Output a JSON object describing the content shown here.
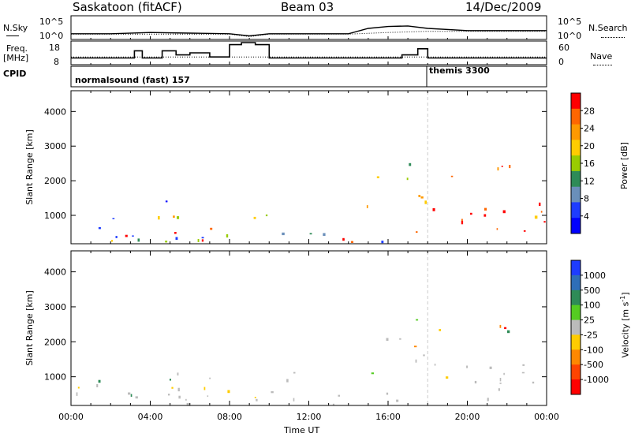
{
  "header": {
    "station": "Saskatoon (fitACF)",
    "beam": "Beam 03",
    "date": "14/Dec/2009"
  },
  "status_panel": {
    "nsky_label": "N.Sky",
    "nsky_ticks": [
      "10^5",
      "10^0"
    ],
    "nsearch_label": "N.Search",
    "nsearch_ticks": [
      "10^5",
      "10^0"
    ],
    "freq_label": "Freq.",
    "freq_unit": "[MHz]",
    "freq_ticks": [
      "18",
      "8"
    ],
    "nave_label": "Nave",
    "nave_ticks": [
      "60",
      "0"
    ],
    "cpid_label": "CPID",
    "cpid_modes": [
      {
        "name": "normalsound (fast) 157",
        "start_hour": 0,
        "end_hour": 18
      },
      {
        "name": "themis 3300",
        "start_hour": 18,
        "end_hour": 24
      }
    ]
  },
  "chart_data": [
    {
      "type": "line",
      "title": "",
      "series": [
        {
          "name": "N.Sky",
          "x": [
            0,
            2,
            4,
            6,
            8,
            9,
            10,
            12,
            14,
            15,
            16,
            17,
            18,
            20,
            22,
            24
          ],
          "values": [
            10,
            10,
            20,
            14,
            10,
            3,
            10,
            10,
            10,
            200,
            600,
            800,
            200,
            60,
            60,
            60
          ]
        },
        {
          "name": "N.Search",
          "x": [
            0,
            2,
            4,
            6,
            8,
            9,
            10,
            12,
            14,
            16,
            18,
            20,
            22,
            24
          ],
          "values": [
            8,
            8,
            8,
            8,
            8,
            2,
            8,
            8,
            8,
            20,
            40,
            40,
            40,
            40
          ]
        }
      ],
      "ylim": [
        1,
        100000
      ],
      "yscale": "log"
    },
    {
      "type": "line",
      "series": [
        {
          "name": "Freq.",
          "x": [
            0,
            3.2,
            3.6,
            4.6,
            5.3,
            6.0,
            7.0,
            8.0,
            8.6,
            9.3,
            10.0,
            16.7,
            17.5,
            18.0,
            24
          ],
          "values": [
            10.5,
            14,
            10.5,
            14,
            12,
            13,
            11,
            17,
            18,
            17,
            10.5,
            12,
            15,
            10.5,
            10.5
          ]
        },
        {
          "name": "Nave",
          "x": [
            0,
            24
          ],
          "values": [
            18,
            18
          ]
        }
      ],
      "freq_ylim": [
        8,
        18
      ],
      "nave_ylim": [
        0,
        60
      ]
    },
    {
      "type": "heatmap",
      "xlabel": "",
      "ylabel": "Slant Range [km]",
      "xlim": [
        0,
        24
      ],
      "ylim": [
        180,
        4600
      ],
      "yticks": [
        1000,
        2000,
        3000,
        4000
      ],
      "colorbar_label": "Power [dB]",
      "colorbar_ticks": [
        "28",
        "24",
        "20",
        "16",
        "12",
        "8",
        "4"
      ],
      "colorbar_colors": [
        "#ff0000",
        "#ff6600",
        "#ff9900",
        "#ffcc00",
        "#99cc00",
        "#2e8b57",
        "#6a8fba",
        "#1e3cff",
        "#0000ff"
      ]
    },
    {
      "type": "heatmap",
      "xlabel": "Time UT",
      "ylabel": "Slant Range [km]",
      "xlim": [
        0,
        24
      ],
      "xticks": [
        "00:00",
        "04:00",
        "08:00",
        "12:00",
        "16:00",
        "20:00",
        "00:00"
      ],
      "ylim": [
        180,
        4600
      ],
      "yticks": [
        1000,
        2000,
        3000,
        4000
      ],
      "colorbar_label": "Velocity [m s-1]",
      "colorbar_ticks": [
        "1000",
        "500",
        "100",
        "25",
        "-25",
        "-100",
        "-500",
        "-1000"
      ],
      "colorbar_colors": [
        "#1e3cff",
        "#2e6eb8",
        "#2e8b57",
        "#55cc22",
        "#bbbbbb",
        "#ffcc00",
        "#ff8800",
        "#ff4400",
        "#ff0000"
      ]
    }
  ],
  "yunits": {
    "power": "Power [dB]",
    "velocity": "Velocity",
    "vunit": "[m s",
    "vexp": "-1",
    "vclose": "]"
  }
}
